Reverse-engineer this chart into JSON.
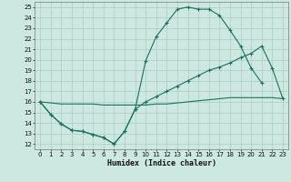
{
  "xlabel": "Humidex (Indice chaleur)",
  "bg_color": "#cce8e0",
  "line_color": "#1a7060",
  "grid_color": "#aaccC4",
  "xlim": [
    -0.5,
    23.5
  ],
  "ylim": [
    11.5,
    25.5
  ],
  "xticks": [
    0,
    1,
    2,
    3,
    4,
    5,
    6,
    7,
    8,
    9,
    10,
    11,
    12,
    13,
    14,
    15,
    16,
    17,
    18,
    19,
    20,
    21,
    22,
    23
  ],
  "yticks": [
    12,
    13,
    14,
    15,
    16,
    17,
    18,
    19,
    20,
    21,
    22,
    23,
    24,
    25
  ],
  "c1x": [
    0,
    1,
    2,
    3,
    4,
    5,
    6,
    7,
    8,
    9,
    10,
    11,
    12,
    13,
    14,
    15,
    16,
    17,
    18,
    19,
    20,
    21
  ],
  "c1y": [
    16.0,
    14.8,
    13.9,
    13.3,
    13.2,
    12.9,
    12.6,
    12.0,
    13.2,
    15.3,
    19.9,
    22.2,
    23.5,
    24.8,
    25.0,
    24.8,
    24.8,
    24.2,
    22.8,
    21.3,
    19.2,
    17.8
  ],
  "c2x": [
    0,
    1,
    2,
    3,
    4,
    5,
    6,
    7,
    8,
    9,
    10,
    11,
    12,
    13,
    14,
    15,
    16,
    17,
    18,
    19,
    20,
    21,
    22,
    23
  ],
  "c2y": [
    16.0,
    15.9,
    15.8,
    15.8,
    15.8,
    15.8,
    15.7,
    15.7,
    15.7,
    15.7,
    15.7,
    15.8,
    15.8,
    15.9,
    16.0,
    16.1,
    16.2,
    16.3,
    16.4,
    16.4,
    16.4,
    16.4,
    16.4,
    16.3
  ],
  "c3x": [
    0,
    1,
    2,
    3,
    4,
    5,
    6,
    7,
    8,
    9,
    10,
    11,
    12,
    13,
    14,
    15,
    16,
    17,
    18,
    19,
    20,
    21,
    22,
    23
  ],
  "c3y": [
    16.0,
    14.8,
    13.9,
    13.3,
    13.2,
    12.9,
    12.6,
    12.0,
    13.2,
    15.3,
    16.0,
    16.5,
    17.0,
    17.5,
    18.0,
    18.5,
    19.0,
    19.3,
    19.7,
    20.2,
    20.6,
    21.3,
    19.2,
    16.3
  ]
}
